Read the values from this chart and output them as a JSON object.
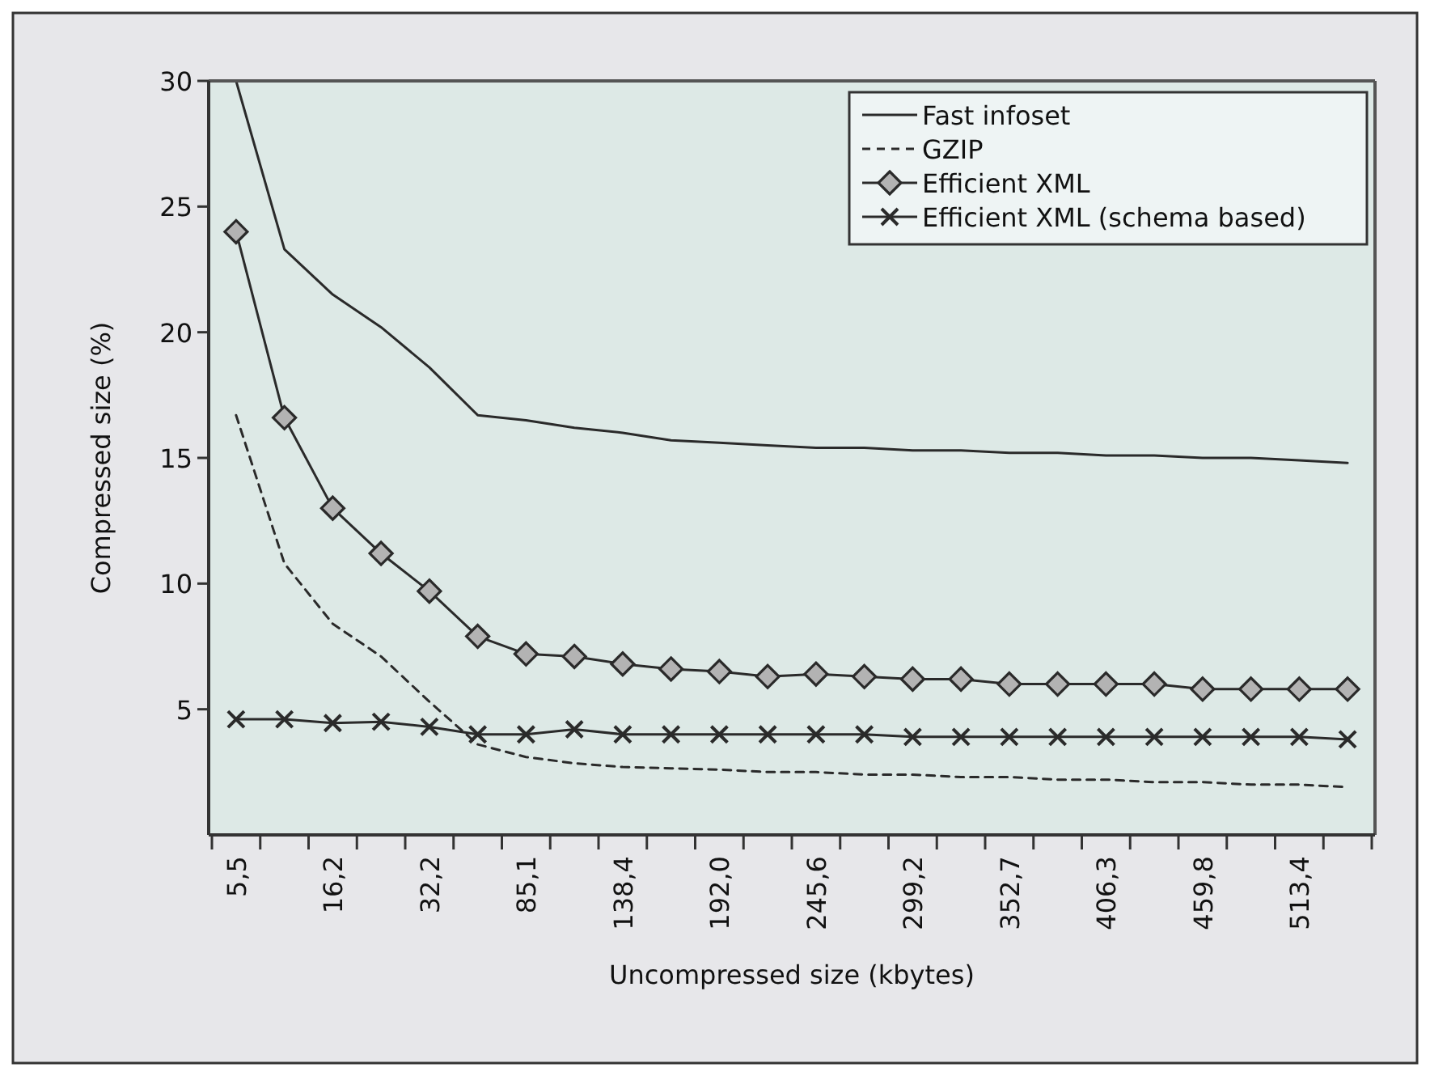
{
  "chart_data": {
    "type": "line",
    "xlabel": "Uncompressed size (kbytes)",
    "ylabel": "Compressed size (%)",
    "categories": [
      "5,5",
      null,
      "16,2",
      null,
      "32,2",
      null,
      "85,1",
      null,
      "138,4",
      null,
      "192,0",
      null,
      "245,6",
      null,
      "299,2",
      null,
      "352,7",
      null,
      "406,3",
      null,
      "459,8",
      null,
      "513,4",
      null
    ],
    "ylim": [
      0,
      30
    ],
    "yticks": [
      5,
      10,
      15,
      20,
      25,
      30
    ],
    "grid": false,
    "legend": "top right",
    "series": [
      {
        "name": "Fast infoset",
        "color": "#2a2a2a",
        "line_style": "solid",
        "marker": "none",
        "values": [
          30,
          23.3,
          21.5,
          20.2,
          18.6,
          16.7,
          16.5,
          16.2,
          16.0,
          15.7,
          15.6,
          15.5,
          15.4,
          15.4,
          15.3,
          15.3,
          15.2,
          15.2,
          15.1,
          15.1,
          15.0,
          15.0,
          14.9,
          14.8
        ]
      },
      {
        "name": "GZIP",
        "color": "#2a2a2a",
        "line_style": "dashed",
        "marker": "none",
        "values": [
          16.7,
          10.8,
          8.4,
          7.1,
          5.3,
          3.6,
          3.1,
          2.85,
          2.7,
          2.65,
          2.6,
          2.5,
          2.5,
          2.4,
          2.4,
          2.3,
          2.3,
          2.2,
          2.2,
          2.1,
          2.1,
          2.0,
          2.0,
          1.9
        ]
      },
      {
        "name": "Efficient XML",
        "color": "#2a2a2a",
        "line_style": "solid",
        "marker": "diamond",
        "values": [
          24,
          16.6,
          13.0,
          11.2,
          9.7,
          7.9,
          7.2,
          7.1,
          6.8,
          6.6,
          6.5,
          6.3,
          6.4,
          6.3,
          6.2,
          6.2,
          6.0,
          6.0,
          6.0,
          6.0,
          5.8,
          5.8,
          5.8,
          5.8
        ]
      },
      {
        "name": "Efficient XML (schema based)",
        "color": "#2a2a2a",
        "line_style": "solid",
        "marker": "cross",
        "values": [
          4.6,
          4.6,
          4.45,
          4.5,
          4.3,
          4.0,
          4.0,
          4.2,
          4.0,
          4.0,
          4.0,
          4.0,
          4.0,
          4.0,
          3.9,
          3.9,
          3.9,
          3.9,
          3.9,
          3.9,
          3.9,
          3.9,
          3.9,
          3.8
        ]
      }
    ]
  }
}
